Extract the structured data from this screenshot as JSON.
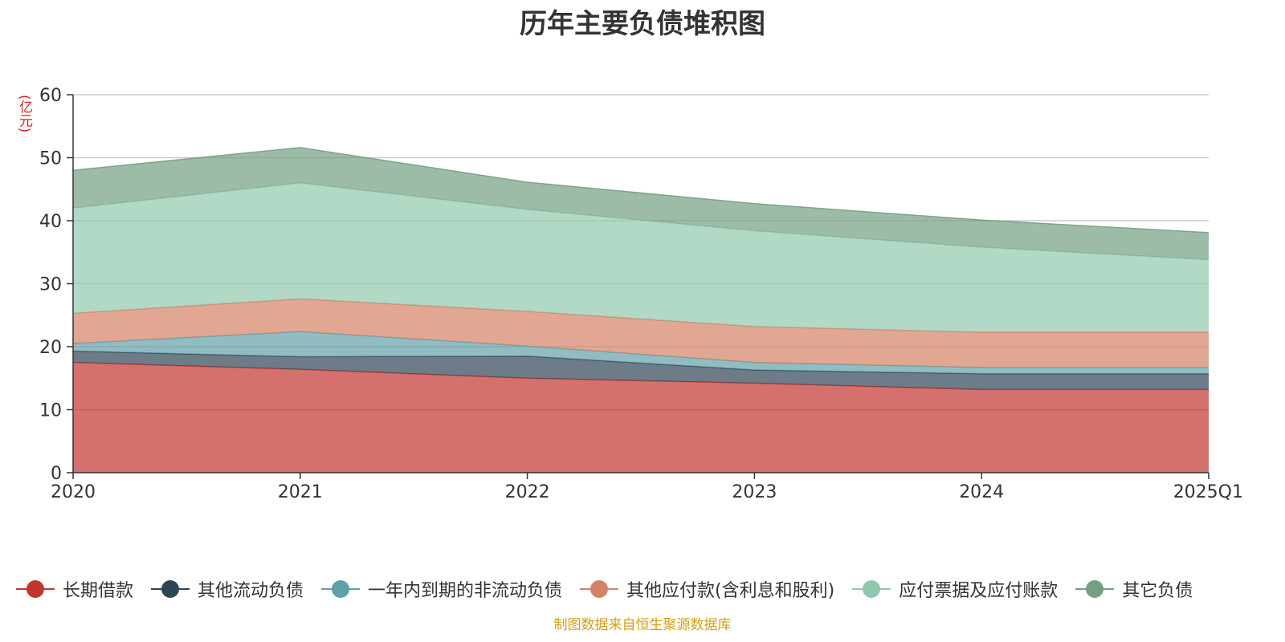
{
  "chart_data": {
    "type": "area",
    "stacked": true,
    "title": "历年主要负债堆积图",
    "ylabel": "(亿元)",
    "xlabel": "",
    "categories": [
      "2020",
      "2021",
      "2022",
      "2023",
      "2024",
      "2025Q1"
    ],
    "ylim": [
      0,
      60
    ],
    "yticks": [
      0,
      10,
      20,
      30,
      40,
      50,
      60
    ],
    "grid": true,
    "legend_position": "bottom",
    "series": [
      {
        "name": "长期借款",
        "color": "#c23531",
        "values": [
          17.5,
          16.4,
          15.0,
          14.2,
          13.2,
          13.2
        ]
      },
      {
        "name": "其他流动负债",
        "color": "#2f4554",
        "values": [
          1.8,
          2.0,
          3.5,
          2.1,
          2.5,
          2.5
        ]
      },
      {
        "name": "一年内到期的非流动负债",
        "color": "#61a0a8",
        "values": [
          1.2,
          4.0,
          1.6,
          1.2,
          1.0,
          1.0
        ]
      },
      {
        "name": "其他应付款(含利息和股利)",
        "color": "#d48265",
        "values": [
          4.8,
          5.2,
          5.5,
          5.7,
          5.6,
          5.6
        ]
      },
      {
        "name": "应付票据及应付账款",
        "color": "#91c7ae",
        "values": [
          16.7,
          18.4,
          16.2,
          15.2,
          13.5,
          11.5
        ]
      },
      {
        "name": "其它负债",
        "color": "#749f83",
        "values": [
          6.0,
          5.6,
          4.3,
          4.3,
          4.3,
          4.3
        ]
      }
    ]
  },
  "footer": "制图数据来自恒生聚源数据库"
}
